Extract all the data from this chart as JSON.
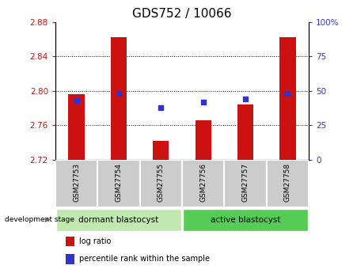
{
  "title": "GDS752 / 10066",
  "samples": [
    "GSM27753",
    "GSM27754",
    "GSM27755",
    "GSM27756",
    "GSM27757",
    "GSM27758"
  ],
  "log_ratio": [
    2.796,
    2.862,
    2.742,
    2.766,
    2.784,
    2.862
  ],
  "percentile_rank": [
    43,
    48,
    38,
    42,
    44,
    48
  ],
  "ylim_left": [
    2.72,
    2.88
  ],
  "ylim_right": [
    0,
    100
  ],
  "yticks_left": [
    2.72,
    2.76,
    2.8,
    2.84,
    2.88
  ],
  "yticks_right": [
    0,
    25,
    50,
    75,
    100
  ],
  "bar_color": "#cc1111",
  "scatter_color": "#3333cc",
  "bar_width": 0.38,
  "bar_baseline": 2.72,
  "group1_label": "dormant blastocyst",
  "group2_label": "active blastocyst",
  "group1_color": "#c0e8b0",
  "group2_color": "#55cc55",
  "xtick_bg_color": "#cccccc",
  "stage_label": "development stage",
  "legend_bar_label": "log ratio",
  "legend_scatter_label": "percentile rank within the sample",
  "title_fontsize": 11,
  "tick_fontsize": 7.5,
  "grid_yticks": [
    2.76,
    2.8,
    2.84
  ]
}
